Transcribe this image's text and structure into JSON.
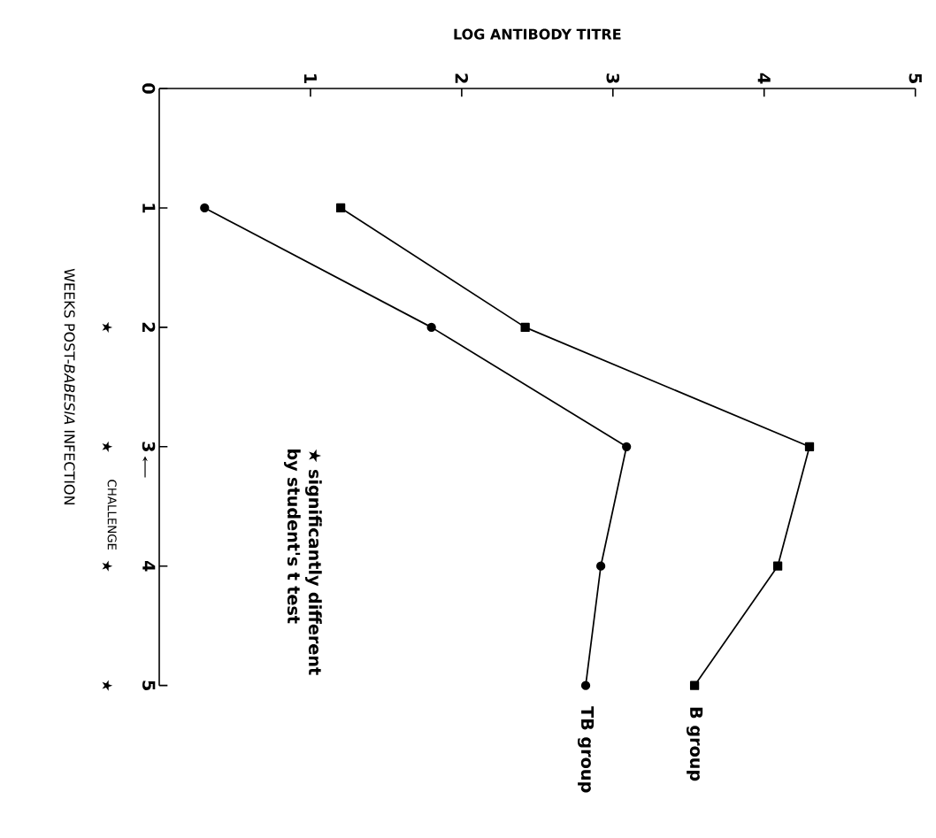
{
  "chart_data": {
    "type": "line",
    "xlabel": "LOG ANTIBODY TITRE",
    "ylabel": "WEEKS POST-*BABESIA* INFECTION",
    "xlim": [
      0,
      5
    ],
    "xticks": [
      1,
      2,
      3,
      4,
      5
    ],
    "ylim": [
      5,
      0
    ],
    "yticks": [
      0,
      1,
      2,
      3,
      4,
      5
    ],
    "series": [
      {
        "name": "B group",
        "color": "#000000",
        "marker": "square",
        "x": [
          1.2,
          2.42,
          4.3,
          4.09,
          3.54
        ],
        "values": [
          1,
          2,
          3,
          4,
          5
        ]
      },
      {
        "name": "TB group",
        "color": "#000000",
        "marker": "circle",
        "x": [
          0.3,
          1.8,
          3.09,
          2.92,
          2.82
        ],
        "values": [
          1,
          2,
          3,
          4,
          5
        ]
      }
    ],
    "annotations": [
      "★",
      "★",
      "★",
      "★",
      "CHALLENGE",
      "★ significantly different by student's t test"
    ],
    "legend": false,
    "grid": false
  }
}
